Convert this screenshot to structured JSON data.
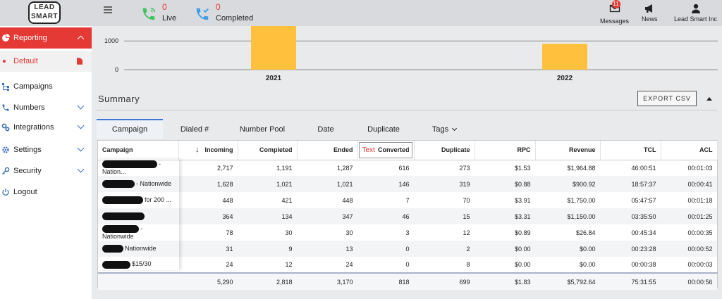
{
  "header": {
    "logo_lines": [
      "LEAD",
      "SMART"
    ],
    "live_count": "0",
    "live_label": "Live",
    "completed_count": "0",
    "completed_label": "Completed",
    "messages_badge": "11",
    "messages_label": "Messages",
    "news_label": "News",
    "account_label": "Lead Smart Inc",
    "icons": [
      "phone-live-icon",
      "phone-completed-icon",
      "mail-icon",
      "megaphone-icon",
      "user-icon"
    ],
    "colors": {
      "live": "#3cc35b",
      "completed": "#3aa0e8",
      "accent": "#e53935"
    }
  },
  "sidebar": {
    "items": [
      {
        "label": "Reporting",
        "icon": "pie-chart-icon",
        "active": true
      },
      {
        "label": "Default",
        "icon": "file-icon",
        "sub": true
      },
      {
        "label": "Campaigns",
        "icon": "sitemap-icon"
      },
      {
        "label": "Numbers",
        "icon": "phone-icon"
      },
      {
        "label": "Integrations",
        "icon": "cogs-icon"
      },
      {
        "label": "Settings",
        "icon": "gear-icon"
      },
      {
        "label": "Security",
        "icon": "key-icon"
      },
      {
        "label": "Logout",
        "icon": "power-icon"
      }
    ]
  },
  "chart_data": {
    "type": "bar",
    "categories": [
      "2021",
      "2022"
    ],
    "values": [
      1520,
      900
    ],
    "yticks": [
      "1000",
      "0"
    ],
    "ylim": [
      0,
      1520
    ],
    "bar_color": "#ffc13d"
  },
  "summary": {
    "title": "Summary",
    "export_label": "EXPORT CSV"
  },
  "tabs": [
    "Campaign",
    "Dialed #",
    "Number Pool",
    "Date",
    "Duplicate",
    "Tags"
  ],
  "table": {
    "headers": [
      "Campaign",
      "Incoming",
      "Completed",
      "Ended",
      "Converted",
      "Duplicate",
      "RPC",
      "Revenue",
      "TCL",
      "ACL"
    ],
    "converted_tag": "Text",
    "rows": [
      {
        "campaign": "- Nation...",
        "values": [
          "2,717",
          "1,191",
          "1,287",
          "616",
          "273",
          "$1.53",
          "$1,964.88",
          "46:00:51",
          "00:01:03"
        ]
      },
      {
        "campaign": "- Nationwide",
        "values": [
          "1,628",
          "1,021",
          "1,021",
          "146",
          "319",
          "$0.88",
          "$900.92",
          "18:57:37",
          "00:00:41"
        ]
      },
      {
        "campaign": "for 200 ...",
        "values": [
          "448",
          "421",
          "448",
          "7",
          "70",
          "$3.91",
          "$1,750.00",
          "05:47:57",
          "00:01:18"
        ]
      },
      {
        "campaign": "",
        "values": [
          "364",
          "134",
          "347",
          "46",
          "15",
          "$3.31",
          "$1,150.00",
          "03:35:50",
          "00:01:25"
        ]
      },
      {
        "campaign": "- Nationwide",
        "values": [
          "78",
          "30",
          "30",
          "3",
          "12",
          "$0.89",
          "$26.84",
          "00:45:34",
          "00:00:35"
        ]
      },
      {
        "campaign": "Nationwide",
        "values": [
          "31",
          "9",
          "13",
          "0",
          "2",
          "$0.00",
          "$0.00",
          "00:23:28",
          "00:00:52"
        ]
      },
      {
        "campaign": "$15/30",
        "values": [
          "24",
          "12",
          "24",
          "0",
          "8",
          "$0.00",
          "$0.00",
          "00:00:38",
          "00:00:03"
        ]
      }
    ],
    "totals": [
      "5,290",
      "2,818",
      "3,170",
      "818",
      "699",
      "$1.83",
      "$5,792.64",
      "75:31:55",
      "00:00:56"
    ]
  }
}
